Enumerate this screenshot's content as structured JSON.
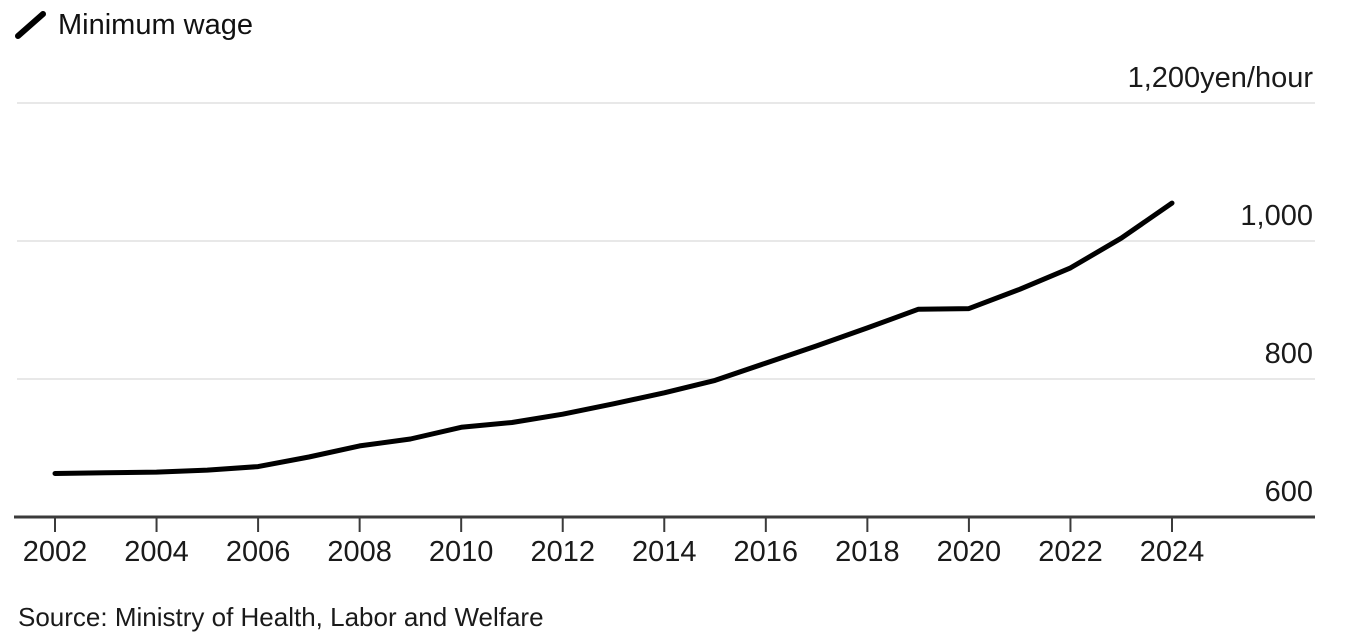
{
  "legend": {
    "label": "Minimum wage"
  },
  "source": {
    "text": "Source: Ministry of Health, Labor and Welfare"
  },
  "chart_data": {
    "type": "line",
    "title": "Minimum wage",
    "xlabel": "",
    "ylabel": "yen/hour",
    "x": [
      2002,
      2003,
      2004,
      2005,
      2006,
      2007,
      2008,
      2009,
      2010,
      2011,
      2012,
      2013,
      2014,
      2015,
      2016,
      2017,
      2018,
      2019,
      2020,
      2021,
      2022,
      2023,
      2024
    ],
    "series": [
      {
        "name": "Minimum wage",
        "values": [
          663,
          664,
          665,
          668,
          673,
          687,
          703,
          713,
          730,
          737,
          749,
          764,
          780,
          798,
          823,
          848,
          874,
          901,
          902,
          930,
          961,
          1004,
          1055
        ]
      }
    ],
    "ylim": [
      600,
      1200
    ],
    "yticks": [
      {
        "value": 600,
        "label": "600"
      },
      {
        "value": 800,
        "label": "800"
      },
      {
        "value": 1000,
        "label": "1,000"
      },
      {
        "value": 1200,
        "label": "1,200yen/hour"
      }
    ],
    "xticks": [
      2002,
      2004,
      2006,
      2008,
      2010,
      2012,
      2014,
      2016,
      2018,
      2020,
      2022,
      2024
    ],
    "grid": "horizontal",
    "legend_position": "top-left",
    "colors": {
      "line": "#000000",
      "grid": "#e8e8e8",
      "axis": "#3b3b3b",
      "text": "#1a1a1a"
    }
  }
}
